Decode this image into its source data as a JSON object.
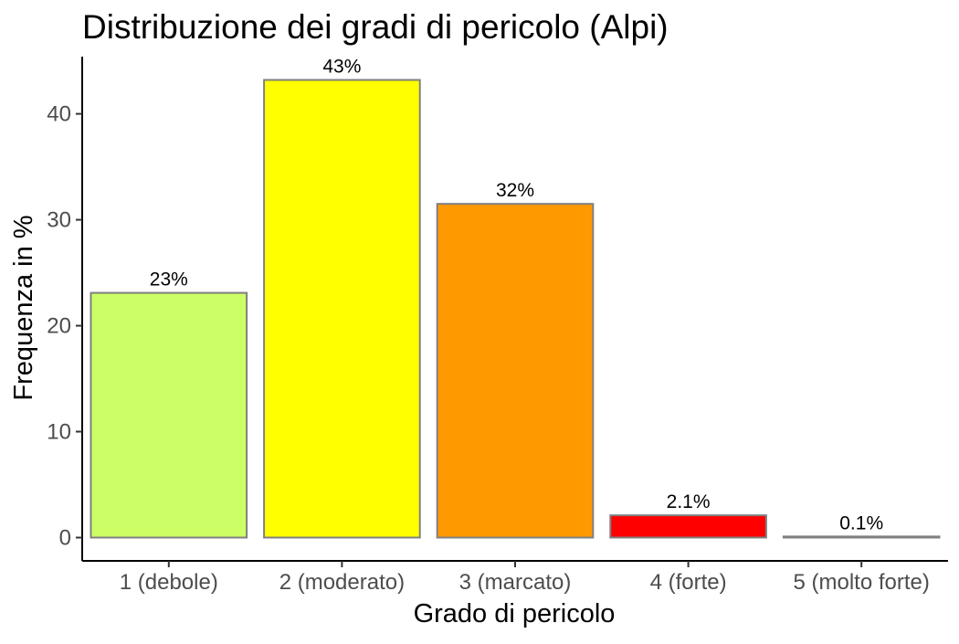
{
  "chart_data": {
    "type": "bar",
    "title": "Distribuzione dei gradi di pericolo (Alpi)",
    "xlabel": "Grado di pericolo",
    "ylabel": "Frequenza in %",
    "categories": [
      "1 (debole)",
      "2 (moderato)",
      "3 (marcato)",
      "4 (forte)",
      "5 (molto forte)"
    ],
    "values": [
      23.1,
      43.2,
      31.5,
      2.1,
      0.1
    ],
    "data_labels": [
      "23%",
      "43%",
      "32%",
      "2.1%",
      "0.1%"
    ],
    "colors": [
      "#CCFF66",
      "#FFFF00",
      "#FF9900",
      "#FF0000",
      "#990000"
    ],
    "bar_border_color": "#808080",
    "yticks": [
      0,
      10,
      20,
      30,
      40
    ],
    "ylim": [
      -2.2,
      45.4
    ],
    "grid": false,
    "legend": "none"
  }
}
